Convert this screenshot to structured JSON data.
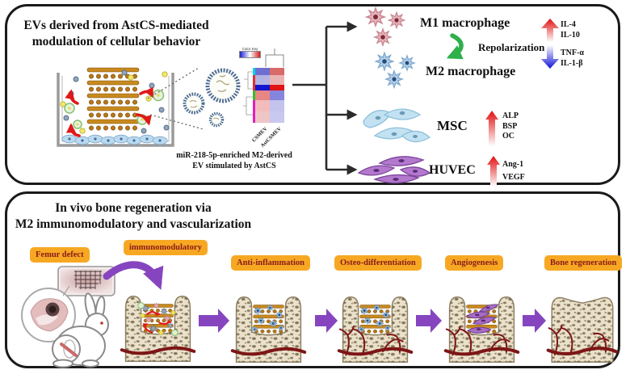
{
  "top_panel": {
    "title_line1": "EVs derived from AstCS-mediated",
    "title_line2": "modulation of cellular behavior",
    "caption_line1": "miR-218-5p-enriched  M2-derived",
    "caption_line2": "EV stimulated by AstCS",
    "m1_label": "M1 macrophage",
    "repolarization_label": "Repolarization",
    "m2_label": "M2 macrophage",
    "cytokines_up": [
      "IL-4",
      "IL-10"
    ],
    "cytokines_down": [
      "TNF-α",
      "IL-1-β"
    ],
    "msc_label": "MSC",
    "msc_markers": [
      "ALP",
      "BSP",
      "OC"
    ],
    "huvec_label": "HUVEC",
    "huvec_markers": [
      "Ang-1",
      "VEGF"
    ]
  },
  "chart_data": {
    "type": "heatmap",
    "legend": "Color Key",
    "columns": [
      "CSMEV",
      "AstCSMEV"
    ],
    "description": "Two-column clustered heatmap comparing miRNA expression in CSMEV vs AstCSMEV; cell colors estimated from pixels (blue = low, red = high)",
    "rows": [
      {
        "h": 9,
        "side": "#00d5e8",
        "cells": [
          "#6e6ed0",
          "#d96a6a"
        ]
      },
      {
        "h": 12,
        "side": "#e03030",
        "cells": [
          "#b3b3e3",
          "#eab3b3"
        ]
      },
      {
        "h": 7,
        "side": "#e03030",
        "cells": [
          "#1414cf",
          "#e01414"
        ]
      },
      {
        "h": 12,
        "side": "#30c030",
        "cells": [
          "#e88585",
          "#8585de"
        ]
      },
      {
        "h": 14,
        "side": "#e020c0",
        "cells": [
          "#f2bcbc",
          "#c3c3ec"
        ]
      },
      {
        "h": 14,
        "side": "#e020c0",
        "cells": [
          "#efc6c6",
          "#c9c9ef"
        ]
      }
    ]
  },
  "bottom_panel": {
    "title_line1": "In vivo bone regeneration via",
    "title_line2": "M2 immunomodulatory and vascularization",
    "stages": [
      {
        "label": "Femur defect"
      },
      {
        "label": "immunomodulatory"
      },
      {
        "label": "Anti-inflammation"
      },
      {
        "label": "Osteo-differentiation"
      },
      {
        "label": "Angiogenesis"
      },
      {
        "label": "Bone regeneration"
      }
    ]
  },
  "colors": {
    "panel_border": "#1a1a1a",
    "stage_label_bg": "#F7A823",
    "stage_label_text": "#8B1A1A",
    "arrow_purple": "#8645BF",
    "arrow_green": "#2EB04A",
    "up_arrow_red": "#E01010",
    "down_arrow_blue": "#1212D8",
    "scaffold_brown": "#C8891E",
    "vessel_red": "#7D1616"
  }
}
